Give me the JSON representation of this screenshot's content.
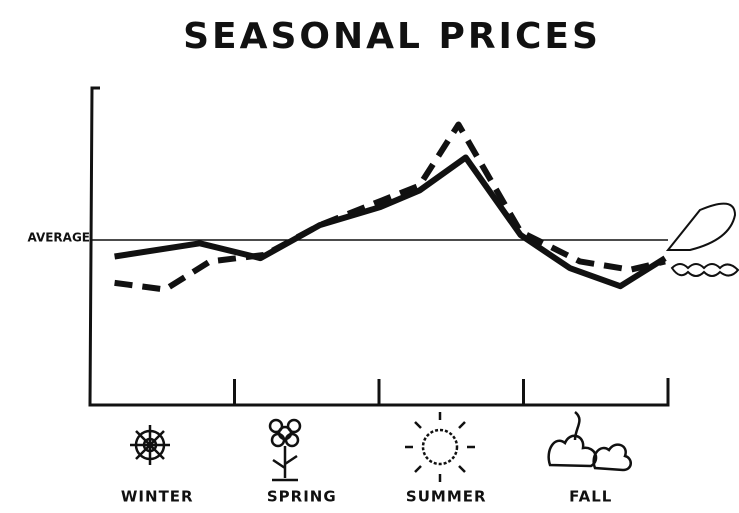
{
  "chart_data": {
    "type": "line",
    "title": "SEASONAL PRICES",
    "categories": [
      "WINTER",
      "SPRING",
      "SUMMER",
      "FALL"
    ],
    "xlim": [
      0,
      4
    ],
    "xticks": [
      1,
      2,
      3,
      4
    ],
    "ylim": [
      0,
      200
    ],
    "reference_line": {
      "value": 100,
      "label": "AVERAGE"
    },
    "series": [
      {
        "color": "#111111",
        "dash": false,
        "x": [
          0.17,
          0.76,
          1.18,
          1.59,
          2.01,
          2.28,
          2.6,
          2.98,
          3.32,
          3.67,
          3.98
        ],
        "values": [
          90,
          98,
          89,
          109,
          120,
          130,
          150,
          103,
          83,
          72,
          89
        ]
      },
      {
        "color": "#111111",
        "dash": true,
        "x": [
          0.17,
          0.52,
          0.83,
          1.21,
          1.59,
          2.28,
          2.55,
          2.98,
          3.39,
          3.74,
          3.98
        ],
        "values": [
          74,
          70,
          87,
          91,
          109,
          133,
          170,
          105,
          87,
          82,
          87
        ]
      }
    ]
  }
}
